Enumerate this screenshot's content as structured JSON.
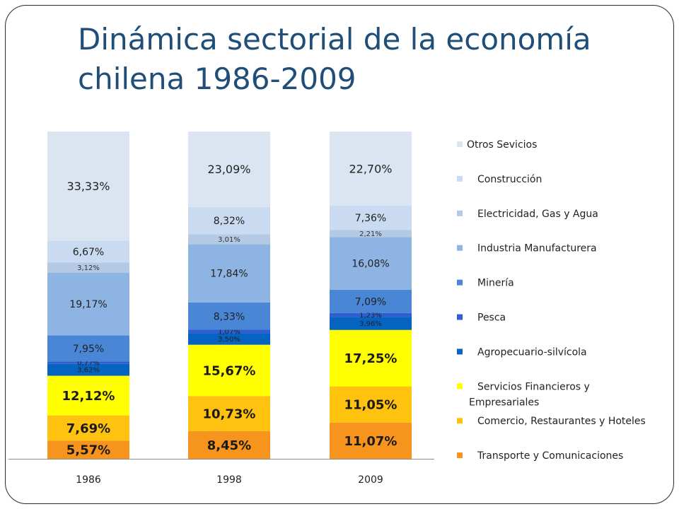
{
  "slide": {
    "title_line1": "Dinámica sectorial de la economía",
    "title_line2": "chilena 1986-2009"
  },
  "chart_data": {
    "type": "bar",
    "stacked": true,
    "categories": [
      "1986",
      "1998",
      "2009"
    ],
    "legend_position": "right",
    "series": [
      {
        "name": "Transporte y Comunicaciones",
        "color": "#f7941d",
        "values": [
          5.57,
          8.45,
          11.07
        ],
        "labels": [
          "5,57%",
          "8,45%",
          "11,07%"
        ]
      },
      {
        "name": "Comercio, Restaurantes y Hoteles",
        "color": "#ffc20e",
        "values": [
          7.69,
          10.73,
          11.05
        ],
        "labels": [
          "7,69%",
          "10,73%",
          "11,05%"
        ]
      },
      {
        "name": "Servicios Financieros y Empresariales",
        "color": "#ffff00",
        "values": [
          12.12,
          15.67,
          17.25
        ],
        "labels": [
          "12,12%",
          "15,67%",
          "17,25%"
        ]
      },
      {
        "name": "Agropecuario-silvícola",
        "color": "#0563c1",
        "values": [
          3.62,
          3.5,
          3.96
        ],
        "labels": [
          "3,62%",
          "3,50%",
          "3,96%"
        ]
      },
      {
        "name": "Pesca",
        "color": "#2f5fcf",
        "values": [
          0.77,
          1.07,
          1.23
        ],
        "labels": [
          "0,77%",
          "1,07%",
          "1,23%"
        ]
      },
      {
        "name": "Minería",
        "color": "#4a86d6",
        "values": [
          7.95,
          8.33,
          7.09
        ],
        "labels": [
          "7,95%",
          "8,33%",
          "7,09%"
        ]
      },
      {
        "name": "Industria Manufacturera",
        "color": "#8db4e2",
        "values": [
          19.17,
          17.84,
          16.08
        ],
        "labels": [
          "19,17%",
          "17,84%",
          "16,08%"
        ]
      },
      {
        "name": "Electricidad, Gas y Agua",
        "color": "#b4c9e4",
        "values": [
          3.12,
          3.01,
          2.21
        ],
        "labels": [
          "3,12%",
          "3,01%",
          "2,21%"
        ]
      },
      {
        "name": "Construcción",
        "color": "#c9daf1",
        "values": [
          6.67,
          8.32,
          7.36
        ],
        "labels": [
          "6,67%",
          "8,32%",
          "7,36%"
        ]
      },
      {
        "name": "Otros Sevicios",
        "color": "#dbe5f1",
        "values": [
          33.33,
          23.09,
          22.7
        ],
        "labels": [
          "33,33%",
          "23,09%",
          "22,70%"
        ]
      }
    ],
    "legend_order": [
      {
        "series": 9,
        "text": "Otros Sevicios"
      },
      {
        "series": 8,
        "text": "Construcción"
      },
      {
        "series": 7,
        "text": "Electricidad, Gas y Agua"
      },
      {
        "series": 6,
        "text": "Industria Manufacturera"
      },
      {
        "series": 5,
        "text": "Minería"
      },
      {
        "series": 4,
        "text": "Pesca"
      },
      {
        "series": 3,
        "text": "Agropecuario-silvícola"
      },
      {
        "series": 2,
        "text": "Servicios Financieros y",
        "text2": "Empresariales"
      },
      {
        "series": 1,
        "text": "Comercio, Restaurantes y Hoteles"
      },
      {
        "series": 0,
        "text": "Transporte y Comunicaciones"
      }
    ]
  }
}
